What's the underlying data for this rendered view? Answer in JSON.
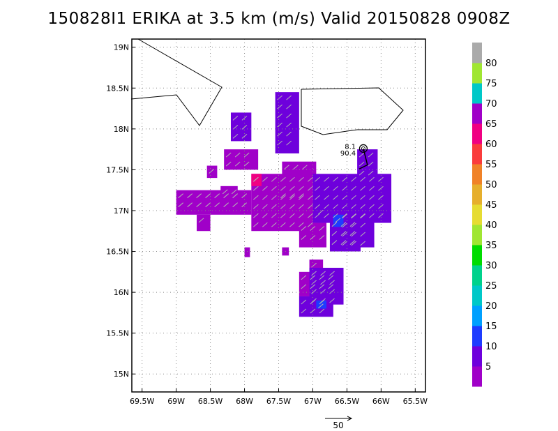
{
  "title": "150828I1 ERIKA at 3.5 km (m/s) Valid 20150828 0908Z",
  "chart_data": {
    "type": "heatmap",
    "title": "150828I1 ERIKA at 3.5 km (m/s) Valid 20150828 0908Z",
    "xlabel": "",
    "ylabel": "",
    "xlim": [
      -69.65,
      -65.35
    ],
    "ylim": [
      14.78,
      19.1
    ],
    "x_ticks": [
      -69.5,
      -69,
      -68.5,
      -68,
      -67.5,
      -67,
      -66.5,
      -66,
      -65.5
    ],
    "x_tick_labels": [
      "69.5W",
      "69W",
      "68.5W",
      "68W",
      "67.5W",
      "67W",
      "66.5W",
      "66W",
      "65.5W"
    ],
    "y_ticks": [
      15,
      15.5,
      16,
      16.5,
      17,
      17.5,
      18,
      18.5,
      19
    ],
    "y_tick_labels": [
      "15N",
      "15.5N",
      "16N",
      "16.5N",
      "17N",
      "17.5N",
      "18N",
      "18.5N",
      "19N"
    ],
    "grid": true,
    "colorbar": {
      "levels": [
        5,
        10,
        15,
        20,
        25,
        30,
        35,
        40,
        45,
        50,
        55,
        60,
        65,
        70,
        75,
        80
      ],
      "labels": [
        "5",
        "10",
        "15",
        "20",
        "25",
        "30",
        "35",
        "40",
        "45",
        "50",
        "55",
        "60",
        "65",
        "70",
        "75",
        "80"
      ],
      "colors": [
        "#a000c8",
        "#6e00dc",
        "#1e3cff",
        "#00a0ff",
        "#00c8c8",
        "#00d28c",
        "#00dc00",
        "#a0e632",
        "#e6dc32",
        "#e6af2d",
        "#f08228",
        "#fa3c3c",
        "#f00082",
        "#a000c8",
        "#00c8c8",
        "#a0e632",
        "#aaaaaa"
      ]
    },
    "wind_regions": [
      {
        "level": 5,
        "cells": [
          [
            -67.9,
            17.45,
            -67.0,
            16.75
          ],
          [
            -69.0,
            17.25,
            -67.9,
            16.95
          ],
          [
            -67.45,
            17.6,
            -66.95,
            17.4
          ],
          [
            -67.2,
            16.85,
            -66.8,
            16.55
          ],
          [
            -68.7,
            16.95,
            -68.5,
            16.75
          ],
          [
            -67.45,
            16.55,
            -67.35,
            16.45
          ],
          [
            -68.0,
            16.55,
            -67.92,
            16.43
          ],
          [
            -67.2,
            16.25,
            -66.65,
            15.95
          ],
          [
            -67.05,
            16.4,
            -66.85,
            16.2
          ],
          [
            -68.3,
            17.75,
            -67.8,
            17.5
          ],
          [
            -68.55,
            17.55,
            -68.4,
            17.4
          ],
          [
            -68.35,
            17.3,
            -68.1,
            17.15
          ]
        ]
      },
      {
        "level": 10,
        "cells": [
          [
            -67.55,
            18.45,
            -67.2,
            17.7
          ],
          [
            -68.2,
            18.2,
            -67.9,
            17.85
          ],
          [
            -67.0,
            17.45,
            -65.85,
            16.85
          ],
          [
            -66.35,
            17.75,
            -66.05,
            17.4
          ],
          [
            -66.75,
            16.9,
            -66.3,
            16.5
          ],
          [
            -66.6,
            17.0,
            -66.1,
            16.55
          ],
          [
            -67.2,
            15.95,
            -66.7,
            15.7
          ],
          [
            -67.05,
            16.3,
            -66.55,
            15.85
          ],
          [
            -66.95,
            17.05,
            -66.75,
            16.85
          ]
        ]
      },
      {
        "level": 15,
        "cells": [
          [
            -66.7,
            16.95,
            -66.55,
            16.8
          ],
          [
            -66.95,
            15.9,
            -66.8,
            15.8
          ]
        ]
      },
      {
        "level": 65,
        "cells": [
          [
            -67.9,
            17.45,
            -67.75,
            17.3
          ]
        ]
      },
      {
        "level": 70,
        "cells": [
          [
            -67.5,
            17.25,
            -67.1,
            17.05
          ]
        ]
      }
    ],
    "annotations": [
      {
        "text": "8.1",
        "lon": -66.37,
        "lat": 17.79
      },
      {
        "text": "90.4",
        "lon": -66.37,
        "lat": 17.71
      }
    ],
    "storm_center": {
      "lon": -66.26,
      "lat": 17.76
    },
    "track": [
      [
        -66.26,
        17.76
      ],
      [
        -66.2,
        17.56
      ],
      [
        -66.32,
        17.51
      ]
    ],
    "vector_reference": {
      "label": "50",
      "units": "m/s"
    }
  }
}
